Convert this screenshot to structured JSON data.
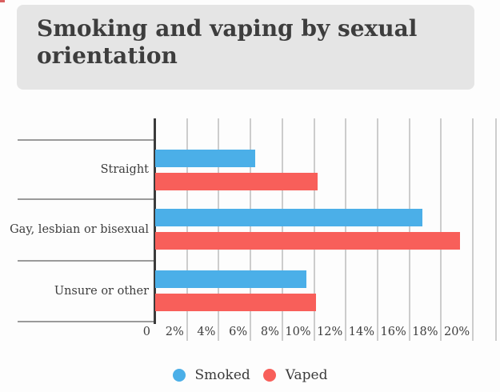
{
  "page": {
    "background": "#fdfdfd",
    "top_left_artifact_color": "#d95f5f"
  },
  "header": {
    "title": "Smoking and vaping by sexual orientation",
    "background": "#e5e5e5",
    "text_color": "#3d3d3d"
  },
  "chart_data": {
    "type": "bar",
    "orientation": "horizontal",
    "title": "Smoking and vaping by sexual orientation",
    "categories": [
      "Straight",
      "Gay, lesbian or bisexual",
      "Unsure or other"
    ],
    "series": [
      {
        "name": "Smoked",
        "color": "#4bafe8",
        "values": [
          6.3,
          16.8,
          9.5
        ]
      },
      {
        "name": "Vaped",
        "color": "#f85f5a",
        "values": [
          10.2,
          19.2,
          10.1
        ]
      }
    ],
    "x_ticks": [
      "0",
      "2%",
      "4%",
      "6%",
      "8%",
      "10%",
      "12%",
      "14%",
      "16%",
      "18%",
      "20%"
    ],
    "x_tick_values": [
      0,
      2,
      4,
      6,
      8,
      10,
      12,
      14,
      16,
      18,
      20
    ],
    "xlim": [
      0,
      21.5
    ],
    "xlabel": "",
    "ylabel": "",
    "grid": true,
    "legend_position": "bottom",
    "axis_color": "#3b3b3b",
    "grid_color": "#cdcdcd",
    "separator_color": "#9a9a9a",
    "label_color": "#3d3d3d"
  },
  "legend": {
    "items": [
      {
        "label": "Smoked",
        "color": "#4bafe8"
      },
      {
        "label": "Vaped",
        "color": "#f85f5a"
      }
    ]
  }
}
